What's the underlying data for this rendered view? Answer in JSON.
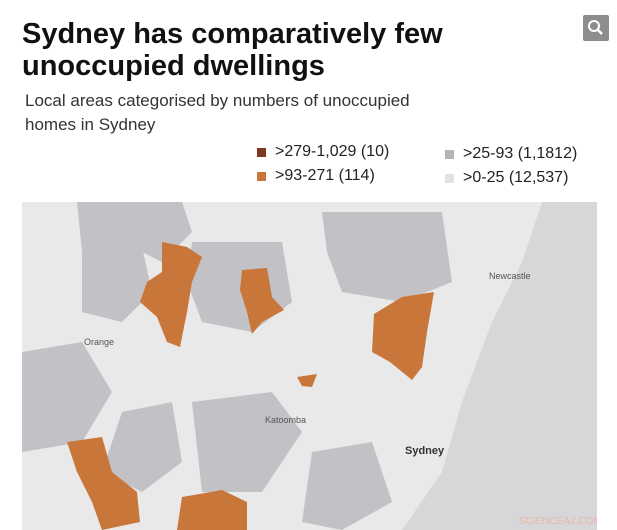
{
  "header": {
    "title_lines": [
      "Sydney has comparatively few",
      "unoccupied dwellings"
    ],
    "subtitle_lines": [
      "Local areas categorised by numbers of unoccupied",
      "homes in Sydney"
    ]
  },
  "legend": {
    "items": [
      {
        "label": ">279-1,029 (10)",
        "color": "#7b3a22"
      },
      {
        "label": ">93-271 (114)",
        "color": "#c8763a"
      },
      {
        "label": ">25-93 (1,1812)",
        "color": "#b5b5b8"
      },
      {
        "label": ">0-25 (12,537)",
        "color": "#e2e2e2"
      }
    ]
  },
  "map": {
    "places": [
      "Newcastle",
      "Orange",
      "Katoomba",
      "Sydney"
    ]
  },
  "watermark": "SCIENCEA2.COM"
}
